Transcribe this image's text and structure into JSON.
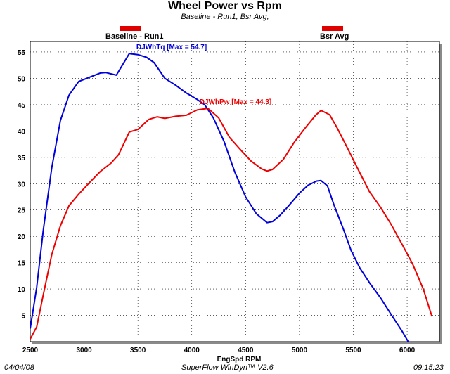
{
  "chart_data": {
    "type": "line",
    "title": "Wheel Power  vs Rpm",
    "subtitle": "Baseline - Run1, Bsr Avg,",
    "xlabel": "EngSpd  RPM",
    "ylabel": "",
    "xlim": [
      2500,
      6300
    ],
    "ylim": [
      0,
      57
    ],
    "x_ticks": [
      2500,
      3000,
      3500,
      4000,
      4500,
      5000,
      5500,
      6000
    ],
    "y_ticks": [
      5,
      10,
      15,
      20,
      25,
      30,
      35,
      40,
      45,
      50,
      55
    ],
    "grid": true,
    "legend": [
      {
        "label": "Baseline - Run1",
        "color": "#e00000"
      },
      {
        "label": "Bsr Avg",
        "color": "#e00000"
      }
    ],
    "series": [
      {
        "name": "DJWhTq",
        "color": "#0000dd",
        "annotation": "DJWhTq [Max = 54.7]",
        "x": [
          2500,
          2560,
          2620,
          2700,
          2780,
          2860,
          2950,
          3050,
          3150,
          3200,
          3300,
          3420,
          3500,
          3580,
          3650,
          3750,
          3850,
          3950,
          4050,
          4120,
          4200,
          4300,
          4400,
          4500,
          4600,
          4700,
          4750,
          4820,
          4900,
          5000,
          5080,
          5160,
          5200,
          5260,
          5320,
          5400,
          5480,
          5560,
          5650,
          5750,
          5850,
          5950,
          6010
        ],
        "y": [
          2.5,
          10.3,
          21,
          33,
          42,
          46.8,
          49.4,
          50.2,
          51,
          51.1,
          50.6,
          54.7,
          54.5,
          54,
          53,
          50,
          48.7,
          47.2,
          46,
          45,
          42.5,
          38,
          32.2,
          27.5,
          24.3,
          22.6,
          22.8,
          24,
          25.8,
          28.2,
          29.7,
          30.5,
          30.6,
          29.6,
          26,
          21.8,
          17.3,
          14,
          11.2,
          8.4,
          5.2,
          2.1,
          0
        ]
      },
      {
        "name": "DJWhPw",
        "color": "#ee0000",
        "annotation": "DJWhPw [Max = 44.3]",
        "x": [
          2500,
          2560,
          2620,
          2700,
          2780,
          2860,
          2950,
          3050,
          3150,
          3250,
          3320,
          3420,
          3500,
          3600,
          3680,
          3750,
          3850,
          3950,
          4050,
          4150,
          4250,
          4350,
          4450,
          4550,
          4650,
          4700,
          4750,
          4850,
          4950,
          5050,
          5150,
          5200,
          5280,
          5350,
          5450,
          5550,
          5650,
          5750,
          5850,
          5950,
          6050,
          6150,
          6230
        ],
        "y": [
          0.5,
          2.8,
          8.8,
          16.5,
          22,
          25.8,
          28,
          30.2,
          32.3,
          33.9,
          35.5,
          39.8,
          40.3,
          42.2,
          42.7,
          42.4,
          42.8,
          43,
          44,
          44.3,
          42.5,
          38.8,
          36.5,
          34.3,
          32.8,
          32.4,
          32.7,
          34.6,
          37.8,
          40.5,
          43,
          43.9,
          43.1,
          40.6,
          36.6,
          32.5,
          28.5,
          25.6,
          22.3,
          18.6,
          14.8,
          10,
          4.8
        ]
      }
    ]
  },
  "footer": {
    "date": "04/04/08",
    "software": "SuperFlow WinDyn™ V2.6",
    "time": "09:15:23"
  }
}
